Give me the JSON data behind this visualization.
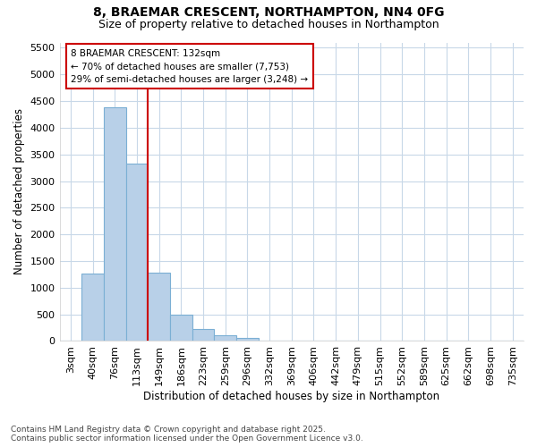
{
  "title_line1": "8, BRAEMAR CRESCENT, NORTHAMPTON, NN4 0FG",
  "title_line2": "Size of property relative to detached houses in Northampton",
  "xlabel": "Distribution of detached houses by size in Northampton",
  "ylabel": "Number of detached properties",
  "categories": [
    "3sqm",
    "40sqm",
    "76sqm",
    "113sqm",
    "149sqm",
    "186sqm",
    "223sqm",
    "259sqm",
    "296sqm",
    "332sqm",
    "369sqm",
    "406sqm",
    "442sqm",
    "479sqm",
    "515sqm",
    "552sqm",
    "589sqm",
    "625sqm",
    "662sqm",
    "698sqm",
    "735sqm"
  ],
  "values": [
    0,
    1270,
    4380,
    3330,
    1280,
    500,
    230,
    100,
    60,
    0,
    0,
    0,
    0,
    0,
    0,
    0,
    0,
    0,
    0,
    0,
    0
  ],
  "bar_color": "#b8d0e8",
  "bar_edge_color": "#7bafd4",
  "vline_color": "#cc0000",
  "vline_x": 3.5,
  "annotation_text": "8 BRAEMAR CRESCENT: 132sqm\n← 70% of detached houses are smaller (7,753)\n29% of semi-detached houses are larger (3,248) →",
  "annotation_box_facecolor": "#ffffff",
  "annotation_box_edgecolor": "#cc0000",
  "ylim": [
    0,
    5600
  ],
  "yticks": [
    0,
    500,
    1000,
    1500,
    2000,
    2500,
    3000,
    3500,
    4000,
    4500,
    5000,
    5500
  ],
  "footnote": "Contains HM Land Registry data © Crown copyright and database right 2025.\nContains public sector information licensed under the Open Government Licence v3.0.",
  "bg_color": "#ffffff",
  "plot_bg_color": "#ffffff",
  "grid_color": "#c8d8e8",
  "title_fontsize": 10,
  "subtitle_fontsize": 9,
  "axis_label_fontsize": 8.5,
  "tick_fontsize": 8,
  "footnote_fontsize": 6.5,
  "bar_width": 1.0
}
